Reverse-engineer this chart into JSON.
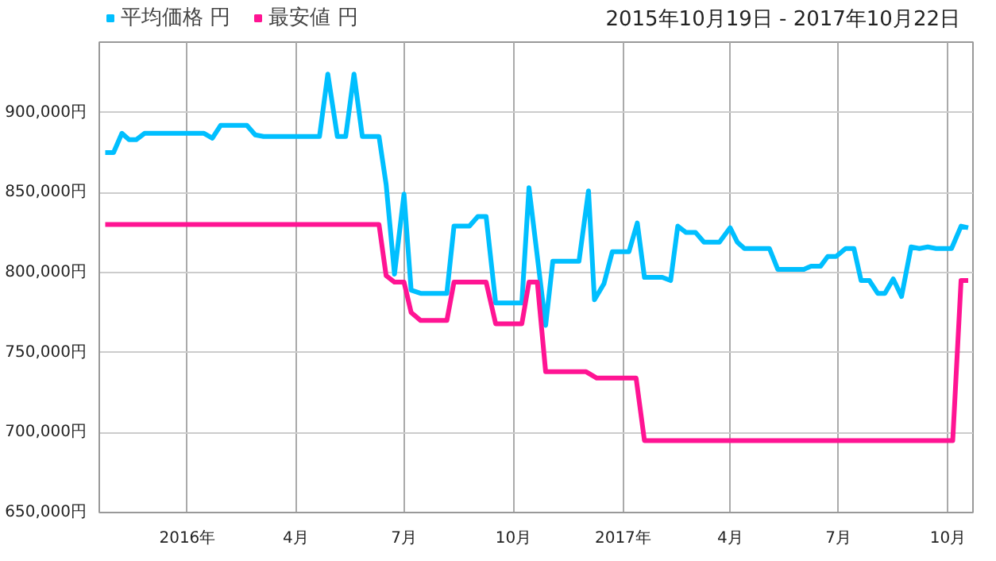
{
  "chart_data": {
    "type": "line",
    "annotations": [
      "2015年10月19日 - 2017年10月22日"
    ],
    "xlim": [
      "2015-10-19",
      "2017-10-22"
    ],
    "ylim": [
      650000,
      944000
    ],
    "xticks": [
      {
        "value": "2016-01-01",
        "label": "2016年"
      },
      {
        "value": "2016-04-01",
        "label": "4月"
      },
      {
        "value": "2016-07-01",
        "label": "7月"
      },
      {
        "value": "2016-10-01",
        "label": "10月"
      },
      {
        "value": "2017-01-01",
        "label": "2017年"
      },
      {
        "value": "2017-04-01",
        "label": "4月"
      },
      {
        "value": "2017-07-01",
        "label": "7月"
      },
      {
        "value": "2017-10-01",
        "label": "10月"
      }
    ],
    "yticks": [
      {
        "value": 650000,
        "label": "650,000円"
      },
      {
        "value": 700000,
        "label": "700,000円"
      },
      {
        "value": 750000,
        "label": "750,000円"
      },
      {
        "value": 800000,
        "label": "800,000円"
      },
      {
        "value": 850000,
        "label": "850,000円"
      },
      {
        "value": 900000,
        "label": "900,000円"
      }
    ],
    "grid": true,
    "legend": "top left",
    "line_style": "solid",
    "series": [
      {
        "name": "平均価格 円",
        "color": "#00bfff",
        "x": [
          "2015-10-24",
          "2015-10-31",
          "2015-11-07",
          "2015-11-13",
          "2015-11-19",
          "2015-11-26",
          "2016-01-15",
          "2016-01-22",
          "2016-01-29",
          "2016-02-20",
          "2016-02-27",
          "2016-03-05",
          "2016-04-21",
          "2016-04-28",
          "2016-05-06",
          "2016-05-13",
          "2016-05-20",
          "2016-05-27",
          "2016-06-10",
          "2016-06-16",
          "2016-06-23",
          "2016-07-01",
          "2016-07-07",
          "2016-07-15",
          "2016-08-06",
          "2016-08-12",
          "2016-08-25",
          "2016-09-01",
          "2016-09-08",
          "2016-09-16",
          "2016-10-08",
          "2016-10-14",
          "2016-10-28",
          "2016-11-03",
          "2016-11-25",
          "2016-12-03",
          "2016-12-08",
          "2016-12-16",
          "2016-12-23",
          "2017-01-06",
          "2017-01-13",
          "2017-01-19",
          "2017-02-03",
          "2017-02-10",
          "2017-02-16",
          "2017-02-23",
          "2017-03-03",
          "2017-03-10",
          "2017-03-23",
          "2017-04-01",
          "2017-04-07",
          "2017-04-13",
          "2017-05-04",
          "2017-05-11",
          "2017-06-02",
          "2017-06-08",
          "2017-06-16",
          "2017-06-22",
          "2017-06-29",
          "2017-07-07",
          "2017-07-14",
          "2017-07-20",
          "2017-07-27",
          "2017-08-03",
          "2017-08-09",
          "2017-08-16",
          "2017-08-23",
          "2017-08-31",
          "2017-09-07",
          "2017-09-14",
          "2017-09-21",
          "2017-10-04",
          "2017-10-12",
          "2017-10-18"
        ],
        "values": [
          875000,
          875000,
          887000,
          883000,
          883000,
          887000,
          887000,
          884000,
          892000,
          892000,
          886000,
          885000,
          885000,
          924000,
          885000,
          885000,
          924000,
          885000,
          885000,
          855000,
          799000,
          849000,
          789000,
          787000,
          787000,
          829000,
          829000,
          835000,
          835000,
          781000,
          781000,
          853000,
          767000,
          807000,
          807000,
          851000,
          783000,
          793000,
          813000,
          813000,
          831000,
          797000,
          797000,
          795000,
          829000,
          825000,
          825000,
          819000,
          819000,
          828000,
          819000,
          815000,
          815000,
          802000,
          802000,
          804000,
          804000,
          810000,
          810000,
          815000,
          815000,
          795000,
          795000,
          787000,
          787000,
          796000,
          785000,
          816000,
          815000,
          816000,
          815000,
          815000,
          829000,
          828000
        ]
      },
      {
        "name": "最安値 円",
        "color": "#ff1493",
        "x": [
          "2015-10-24",
          "2016-06-10",
          "2016-06-16",
          "2016-06-23",
          "2016-07-01",
          "2016-07-07",
          "2016-07-15",
          "2016-08-06",
          "2016-08-12",
          "2016-09-08",
          "2016-09-16",
          "2016-10-08",
          "2016-10-14",
          "2016-10-21",
          "2016-10-28",
          "2016-12-01",
          "2016-12-10",
          "2017-01-12",
          "2017-01-19",
          "2017-10-05",
          "2017-10-12",
          "2017-10-18"
        ],
        "values": [
          830000,
          830000,
          798000,
          794000,
          794000,
          775000,
          770000,
          770000,
          794000,
          794000,
          768000,
          768000,
          794000,
          794000,
          738000,
          738000,
          734000,
          734000,
          695000,
          695000,
          795000,
          795000
        ]
      }
    ]
  }
}
